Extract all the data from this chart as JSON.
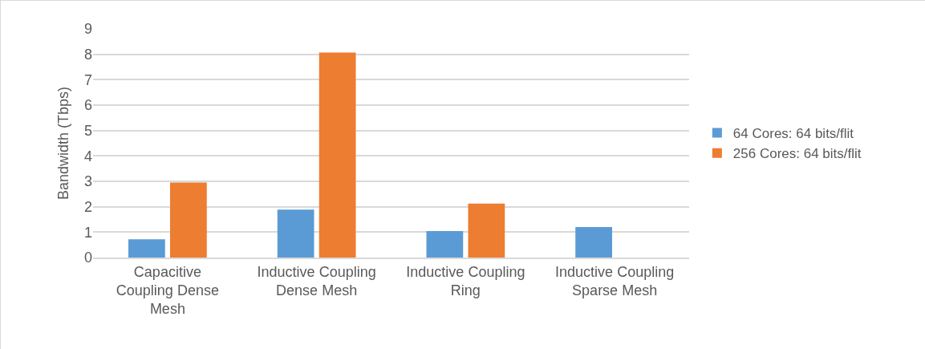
{
  "chart_data": {
    "type": "bar",
    "ylabel": "Bandwidth (Tbps)",
    "categories": [
      "Capacitive Coupling Dense Mesh",
      "Inductive Coupling Dense Mesh",
      "Inductive Coupling Ring",
      "Inductive Coupling Sparse Mesh"
    ],
    "series": [
      {
        "name": "64 Cores: 64 bits/flit",
        "color": "#5b9bd5",
        "values": [
          0.72,
          1.89,
          1.04,
          1.2
        ]
      },
      {
        "name": "256 Cores: 64 bits/flit",
        "color": "#ed7d31",
        "values": [
          2.95,
          8.07,
          2.12,
          null
        ]
      }
    ],
    "ylim": [
      0,
      9
    ],
    "yticks": [
      0,
      1,
      2,
      3,
      4,
      5,
      6,
      7,
      8,
      9
    ],
    "grid": "y",
    "legend": "right"
  }
}
